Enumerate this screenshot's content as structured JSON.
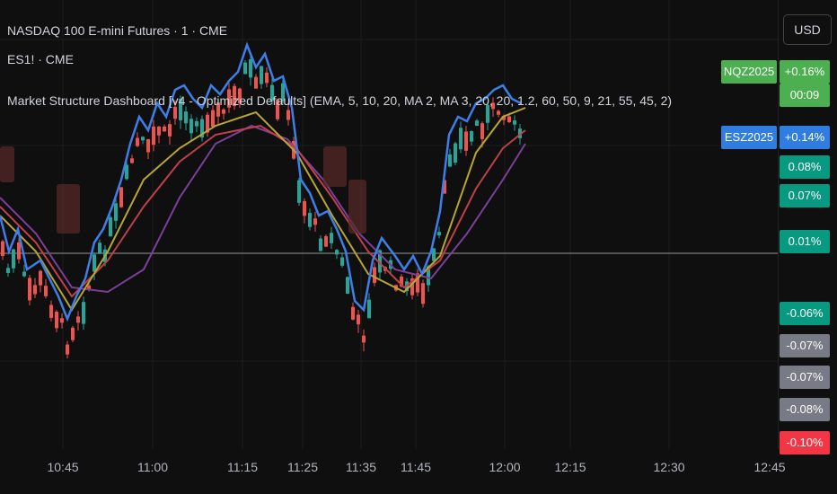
{
  "header": {
    "symbol": "NASDAQ 100 E-mini Futures · 1 · CME",
    "compare": "ES1! · CME",
    "indicator": "Market Structure Dashboard [v4 - Optimized Defaults] (EMA, 5, 10, 20, MA 2, MA 3, 20, 20, 1.2, 60, 50, 9, 21, 55, 45, 2)"
  },
  "price_scale": {
    "currency": "USD",
    "badges": [
      {
        "symbol": "NQZ2025",
        "value": "+0.16%",
        "timer": "00:09"
      },
      {
        "symbol": "ESZ2025",
        "value": "+0.14%"
      }
    ],
    "labels": [
      "0.08%",
      "0.07%",
      "0.01%",
      "-0.06%",
      "-0.07%",
      "-0.07%",
      "-0.08%",
      "-0.10%"
    ]
  },
  "time_axis": [
    "10:45",
    "11:00",
    "11:15",
    "11:25",
    "11:35",
    "11:45",
    "12:00",
    "12:15",
    "12:30",
    "12:45"
  ]
}
